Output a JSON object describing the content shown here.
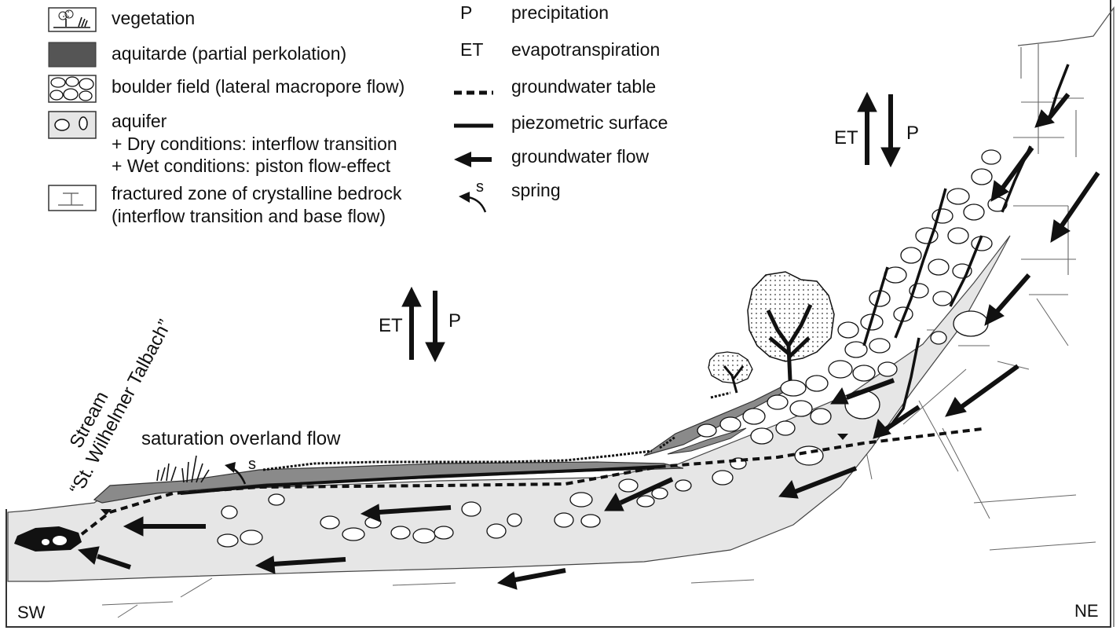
{
  "legend_left": [
    {
      "symbol": "vegetation-swatch",
      "lines": [
        "vegetation"
      ]
    },
    {
      "symbol": "aquitard-swatch",
      "lines": [
        "aquitarde (partial perkolation)"
      ]
    },
    {
      "symbol": "boulder-swatch",
      "lines": [
        "boulder field (lateral macropore flow)"
      ]
    },
    {
      "symbol": "aquifer-swatch",
      "lines": [
        "aquifer",
        "+ Dry conditions: interflow transition",
        "+ Wet conditions: piston flow-effect"
      ]
    },
    {
      "symbol": "bedrock-swatch",
      "lines": [
        "fractured zone of crystalline bedrock",
        "(interflow transition and base flow)"
      ]
    }
  ],
  "legend_right": [
    {
      "symbol": "P",
      "label": "precipitation"
    },
    {
      "symbol": "ET",
      "label": "evapotranspiration"
    },
    {
      "symbol": "dashed-line",
      "label": "groundwater table"
    },
    {
      "symbol": "solid-line",
      "label": "piezometric surface"
    },
    {
      "symbol": "arrow",
      "label": "groundwater flow"
    },
    {
      "symbol": "spring-arrow",
      "symbol_text": "s",
      "label": "spring"
    }
  ],
  "flux_labels": {
    "et": "ET",
    "p": "P"
  },
  "stream_label": {
    "line1": "Stream",
    "line2": "“St. Wilhelmer Talbach”"
  },
  "overland_flow_label": "saturation overland flow",
  "spring_label": "s",
  "orientation": {
    "left": "SW",
    "right": "NE"
  },
  "colors": {
    "aquifer": "#e6e6e6",
    "aquitard": "#8a8a8a",
    "ink": "#111111",
    "boulder_fill": "#ffffff"
  }
}
